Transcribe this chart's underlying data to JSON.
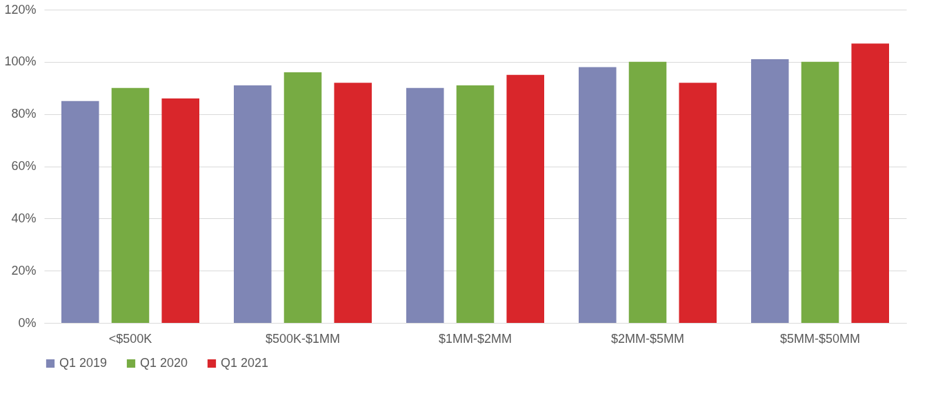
{
  "chart_data": {
    "type": "bar",
    "categories": [
      "<$500K",
      "$500K-$1MM",
      "$1MM-$2MM",
      "$2MM-$5MM",
      "$5MM-$50MM"
    ],
    "series": [
      {
        "name": "Q1 2019",
        "color": "#7f86b5",
        "values": [
          85,
          91,
          90,
          98,
          101
        ]
      },
      {
        "name": "Q1 2020",
        "color": "#77ab43",
        "values": [
          90,
          96,
          91,
          100,
          100
        ]
      },
      {
        "name": "Q1 2021",
        "color": "#d9262b",
        "values": [
          86,
          92,
          95,
          92,
          107
        ]
      }
    ],
    "ylim": [
      0,
      120
    ],
    "yticks": [
      {
        "value": 0,
        "label": "0%"
      },
      {
        "value": 20,
        "label": "20%"
      },
      {
        "value": 40,
        "label": "40%"
      },
      {
        "value": 60,
        "label": "60%"
      },
      {
        "value": 80,
        "label": "80%"
      },
      {
        "value": 100,
        "label": "100%"
      },
      {
        "value": 120,
        "label": "120%"
      }
    ],
    "grid": "y",
    "legend": "bottom"
  }
}
